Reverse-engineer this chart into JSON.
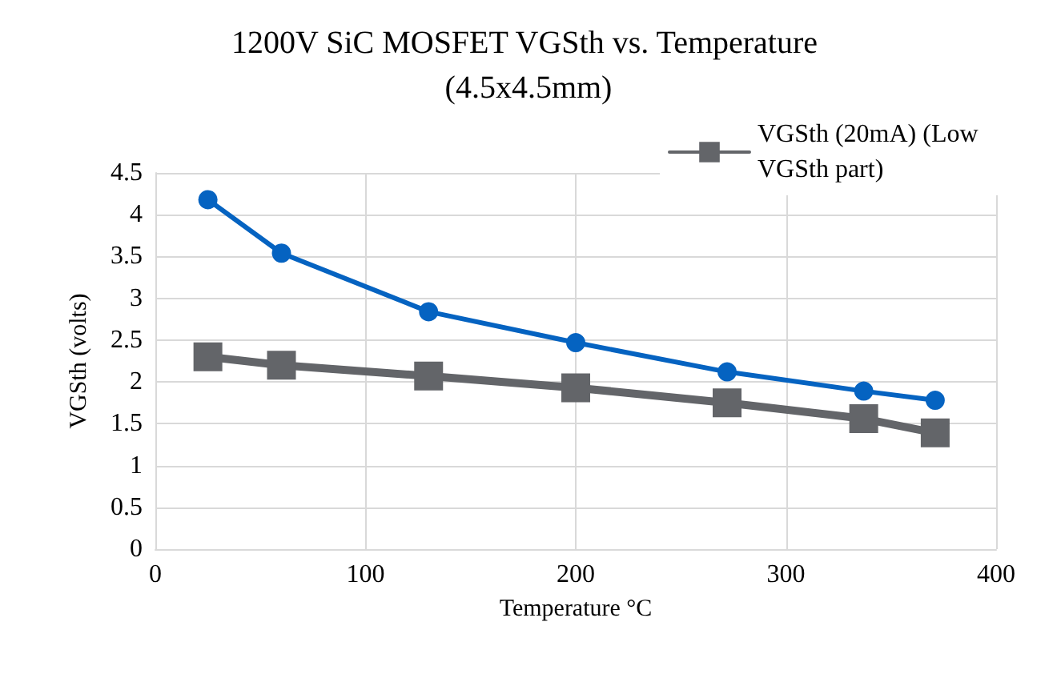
{
  "chart_data": {
    "type": "line",
    "title": "1200V SiC MOSFET VGSth vs. Temperature (4.5x4.5mm)",
    "xlabel": "Temperature °C",
    "ylabel": "VGSth (volts)",
    "x": [
      25,
      60,
      130,
      200,
      272,
      337,
      371
    ],
    "series": [
      {
        "color": "#0563c1",
        "marker": "circle",
        "values": [
          4.18,
          3.54,
          2.84,
          2.47,
          2.12,
          1.89,
          1.78
        ]
      },
      {
        "name": "VGSth (20mA) (Low VGSth part)",
        "color": "#636569",
        "marker": "square",
        "values": [
          2.3,
          2.2,
          2.07,
          1.93,
          1.75,
          1.56,
          1.39
        ]
      }
    ],
    "xlim": [
      0,
      400
    ],
    "xticks": [
      0,
      100,
      200,
      300,
      400
    ],
    "ylim": [
      0,
      4.5
    ],
    "yticks": [
      0,
      0.5,
      1,
      1.5,
      2,
      2.5,
      3,
      3.5,
      4,
      4.5
    ],
    "grid": true,
    "legend": "top right"
  }
}
